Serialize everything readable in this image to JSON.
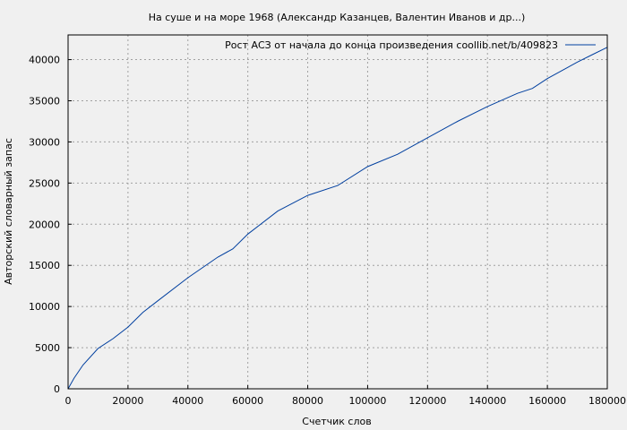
{
  "chart_data": {
    "type": "line",
    "title": "На суше и на море 1968 (Александр Казанцев, Валентин Иванов и др...)",
    "xlabel": "Счетчик слов",
    "ylabel": "Авторский словарный запас",
    "xlim": [
      0,
      180000
    ],
    "ylim": [
      0,
      43000
    ],
    "x_ticks": [
      0,
      20000,
      40000,
      60000,
      80000,
      100000,
      120000,
      140000,
      160000,
      180000
    ],
    "y_ticks": [
      0,
      5000,
      10000,
      15000,
      20000,
      25000,
      30000,
      35000,
      40000
    ],
    "grid": true,
    "legend_position": "top-right",
    "line_color": "#003f9f",
    "series": [
      {
        "name": "Рост АСЗ от начала до конца произведения coollib.net/b/409823",
        "x": [
          0,
          2000,
          5000,
          10000,
          15000,
          20000,
          25000,
          30000,
          40000,
          50000,
          55000,
          60000,
          70000,
          80000,
          90000,
          100000,
          110000,
          120000,
          130000,
          140000,
          150000,
          155000,
          160000,
          170000,
          175000,
          180000
        ],
        "y": [
          0,
          1300,
          2900,
          4900,
          6100,
          7500,
          9300,
          10700,
          13500,
          16000,
          17000,
          18800,
          21600,
          23500,
          24700,
          27000,
          28500,
          30500,
          32500,
          34300,
          35900,
          36500,
          37700,
          39700,
          40600,
          41500
        ]
      }
    ]
  }
}
